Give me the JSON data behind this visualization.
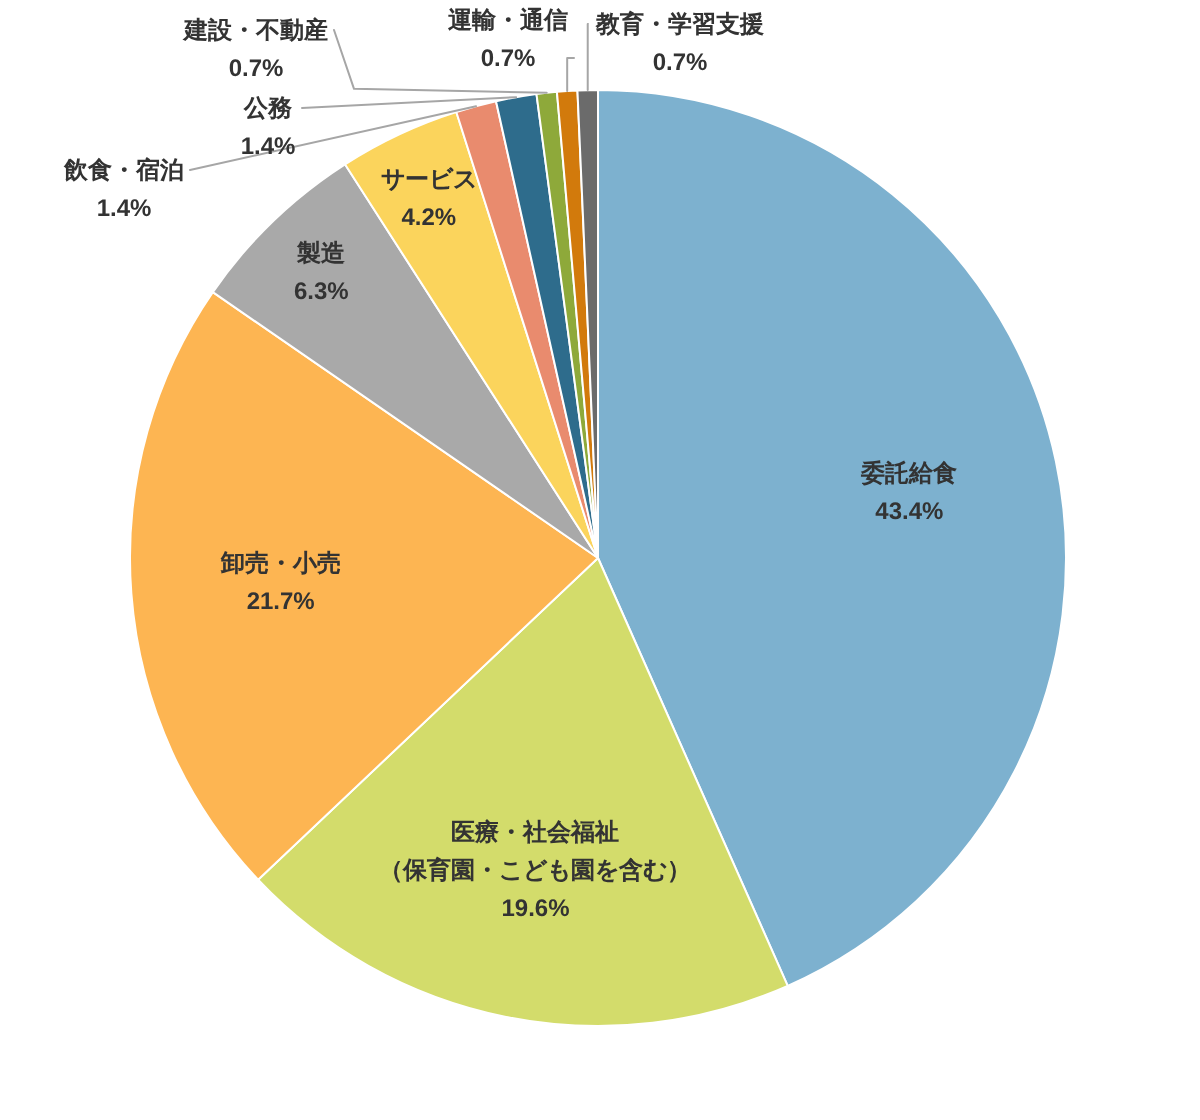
{
  "chart_data": {
    "type": "pie",
    "categories": [
      "委託給食",
      "医療・社会福祉（保育園・こども園を含む）",
      "卸売・小売",
      "製造",
      "サービス",
      "飲食・宿泊",
      "公務",
      "建設・不動産",
      "運輸・通信",
      "教育・学習支援"
    ],
    "values": [
      43.4,
      19.6,
      21.7,
      6.3,
      4.2,
      1.4,
      1.4,
      0.7,
      0.7,
      0.7
    ],
    "value_labels": [
      "43.4%",
      "19.6%",
      "21.7%",
      "6.3%",
      "4.2%",
      "1.4%",
      "1.4%",
      "0.7%",
      "0.7%",
      "0.7%"
    ],
    "colors": [
      "#7db1cf",
      "#d3dc6b",
      "#fdb552",
      "#a9a9a9",
      "#fbd45c",
      "#e98b6e",
      "#2e6c8c",
      "#8ea93a",
      "#d27a0c",
      "#6b6b6b"
    ]
  }
}
